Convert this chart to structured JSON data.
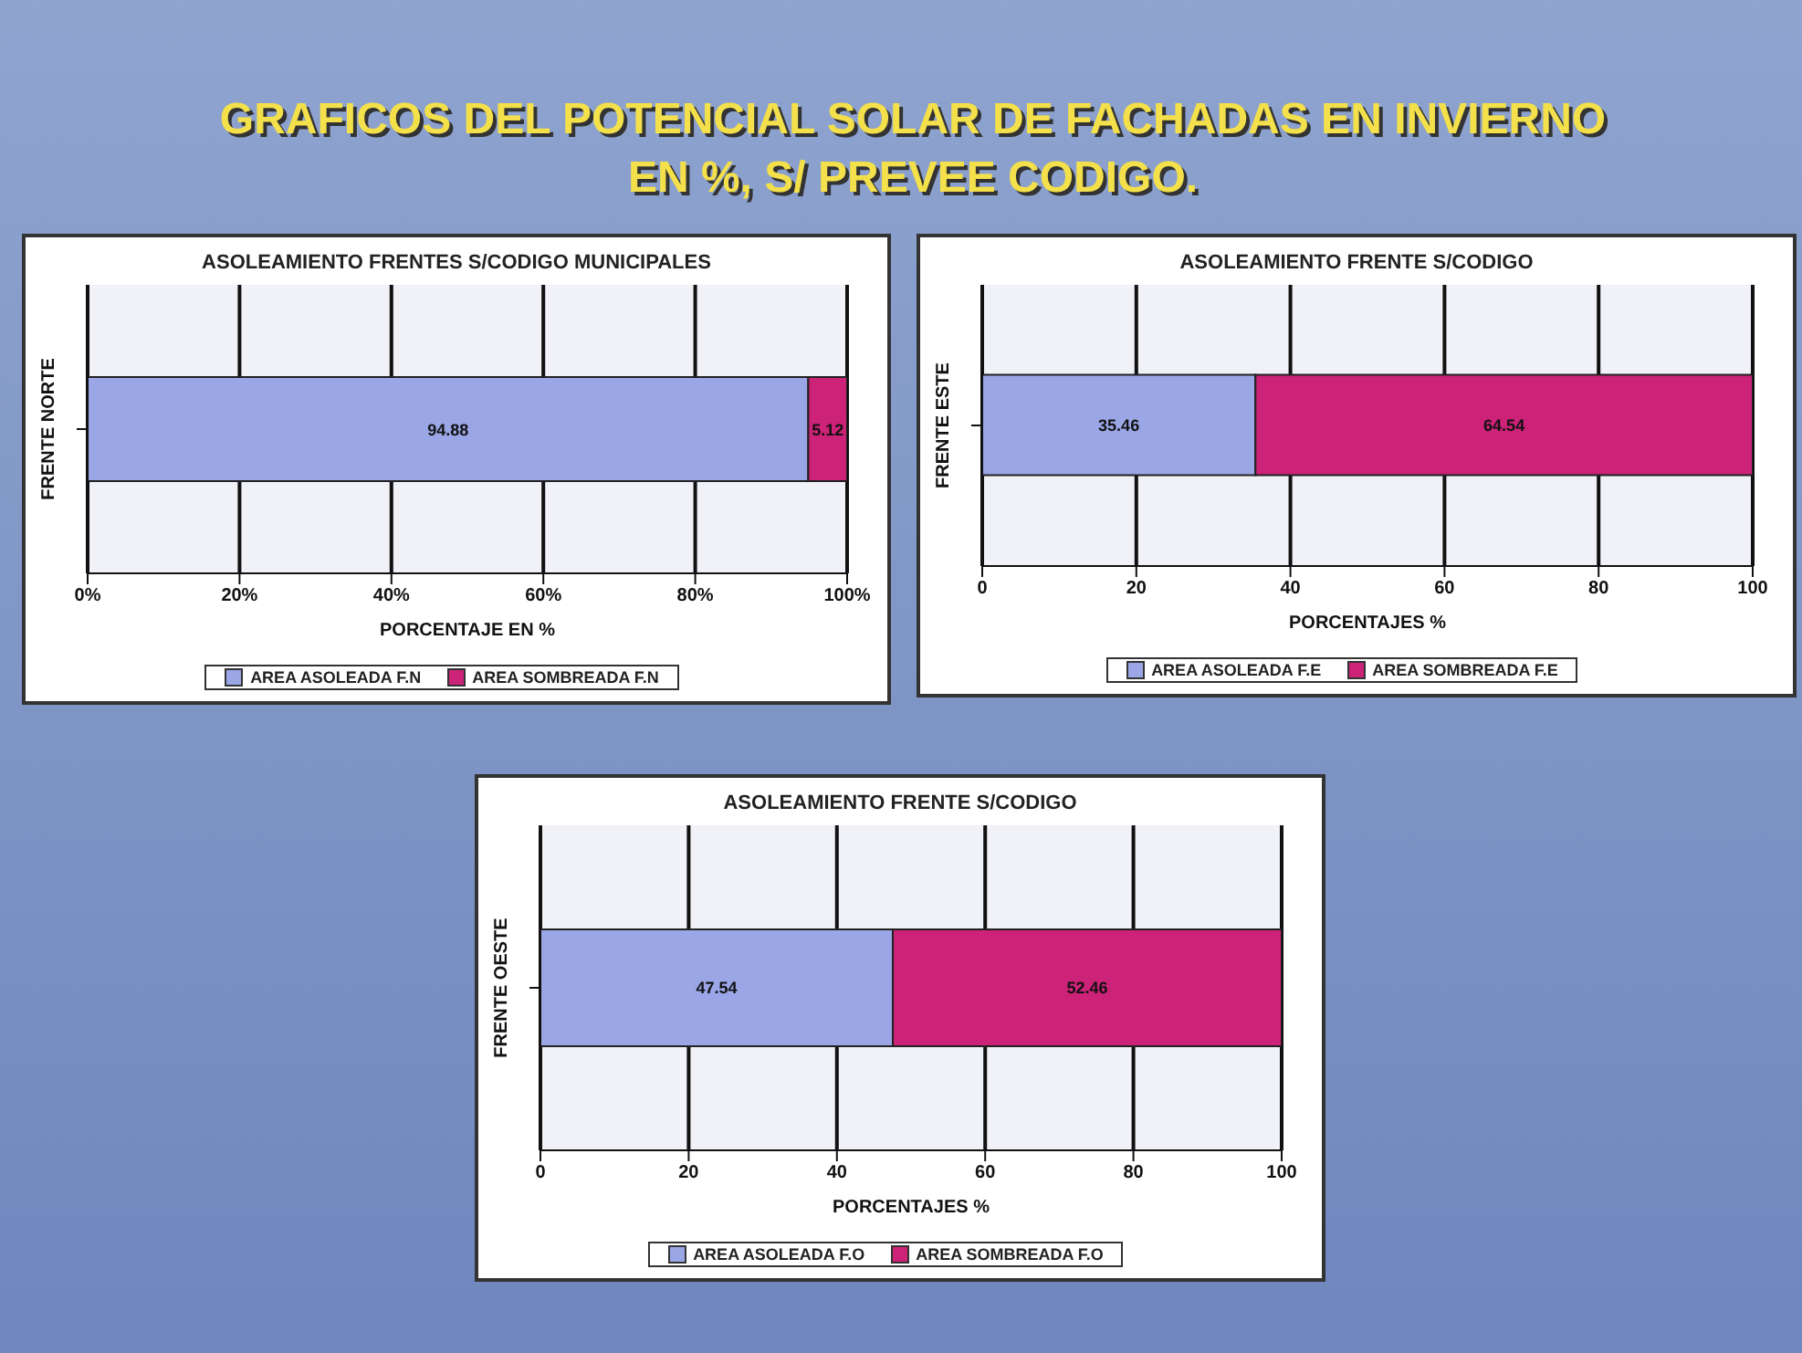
{
  "chart_data": [
    {
      "type": "other",
      "title": "GRAFICOS DEL POTENCIAL SOLAR DE FACHADAS EN INVIERNO EN %, S/ PREVEE CODIGO."
    },
    {
      "type": "bar",
      "orientation": "horizontal",
      "stacked": true,
      "title": "ASOLEAMIENTO FRENTES S/CODIGO MUNICIPALES",
      "xlabel": "PORCENTAJE EN %",
      "ylabel": "FRENTE NORTE",
      "categories": [
        null
      ],
      "series": [
        {
          "name": "AREA ASOLEADA F.N",
          "color": "#9aa6e6",
          "values": [
            94.88
          ]
        },
        {
          "name": "AREA SOMBREADA F.N",
          "color": "#cc2277",
          "values": [
            5.12
          ]
        }
      ],
      "xlim": [
        0,
        100
      ],
      "xticks": [
        {
          "value": 0,
          "label": "0%"
        },
        {
          "value": 20,
          "label": "20%"
        },
        {
          "value": 40,
          "label": "40%"
        },
        {
          "value": 60,
          "label": "60%"
        },
        {
          "value": 80,
          "label": "80%"
        },
        {
          "value": 100,
          "label": "100%"
        }
      ],
      "grid": "x",
      "legend": "bottom",
      "data_labels": true
    },
    {
      "type": "bar",
      "orientation": "horizontal",
      "stacked": true,
      "title": "ASOLEAMIENTO FRENTE S/CODIGO",
      "xlabel": "PORCENTAJES %",
      "ylabel": "FRENTE ESTE",
      "categories": [
        null
      ],
      "series": [
        {
          "name": "AREA ASOLEADA F.E",
          "color": "#9aa6e6",
          "values": [
            35.46
          ]
        },
        {
          "name": "AREA SOMBREADA F.E",
          "color": "#cc2277",
          "values": [
            64.54
          ]
        }
      ],
      "xlim": [
        0,
        100
      ],
      "xticks": [
        0,
        20,
        40,
        60,
        80,
        100
      ],
      "grid": "x",
      "legend": "bottom",
      "data_labels": true
    },
    {
      "type": "bar",
      "orientation": "horizontal",
      "stacked": true,
      "title": "ASOLEAMIENTO FRENTE S/CODIGO",
      "xlabel": "PORCENTAJES %",
      "ylabel": "FRENTE OESTE",
      "categories": [
        null
      ],
      "series": [
        {
          "name": "AREA ASOLEADA F.O",
          "color": "#9aa6e6",
          "values": [
            47.54
          ]
        },
        {
          "name": "AREA SOMBREADA F.O",
          "color": "#cc2277",
          "values": [
            52.46
          ]
        }
      ],
      "xlim": [
        0,
        100
      ],
      "xticks": [
        0,
        20,
        40,
        60,
        80,
        100
      ],
      "grid": "x",
      "legend": "bottom",
      "data_labels": true
    }
  ]
}
